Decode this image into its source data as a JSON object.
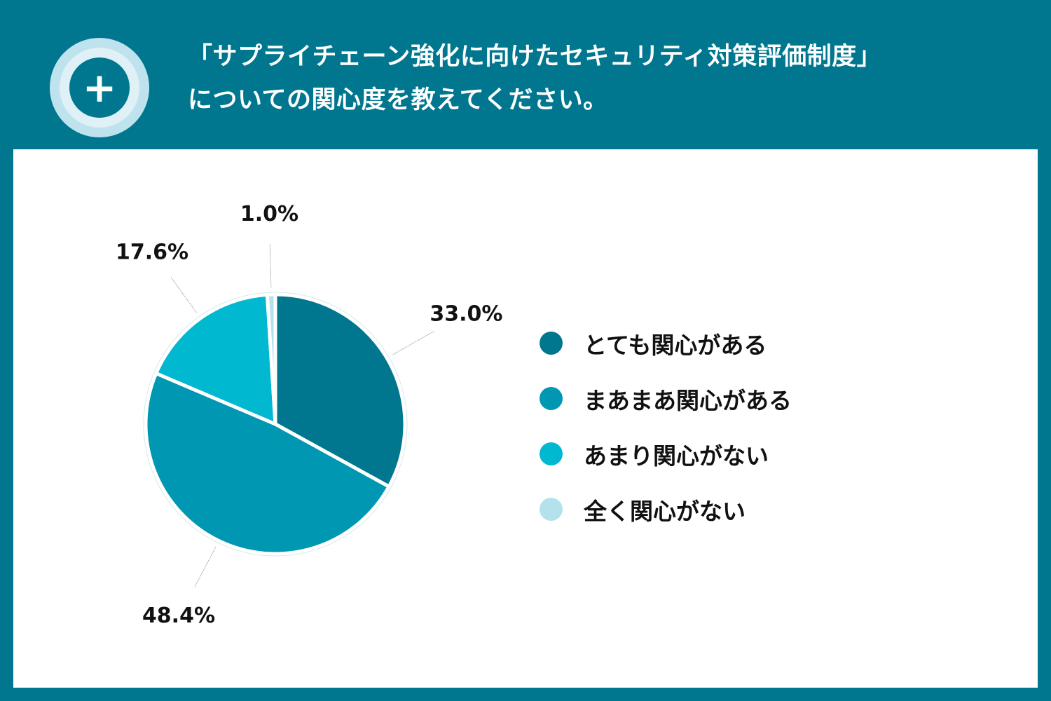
{
  "header": {
    "icon": "plus-circle-icon",
    "title_line1": "「サプライチェーン強化に向けたセキュリティ対策評価制度」",
    "title_line2": "についての関心度を教えてください。"
  },
  "colors": {
    "background": "#00778f"
  },
  "chart_data": {
    "type": "pie",
    "title": "",
    "categories": [
      "とても関心がある",
      "まあまあ関心がある",
      "あまり関心がない",
      "全く関心がない"
    ],
    "values": [
      33.0,
      48.4,
      17.6,
      1.0
    ],
    "labels": [
      "33.0%",
      "48.4%",
      "17.6%",
      "1.0%"
    ],
    "colors": [
      "#00778f",
      "#0097b2",
      "#00b8d0",
      "#b3e2ed"
    ],
    "start": "top, clockwise",
    "legend_position": "right"
  }
}
